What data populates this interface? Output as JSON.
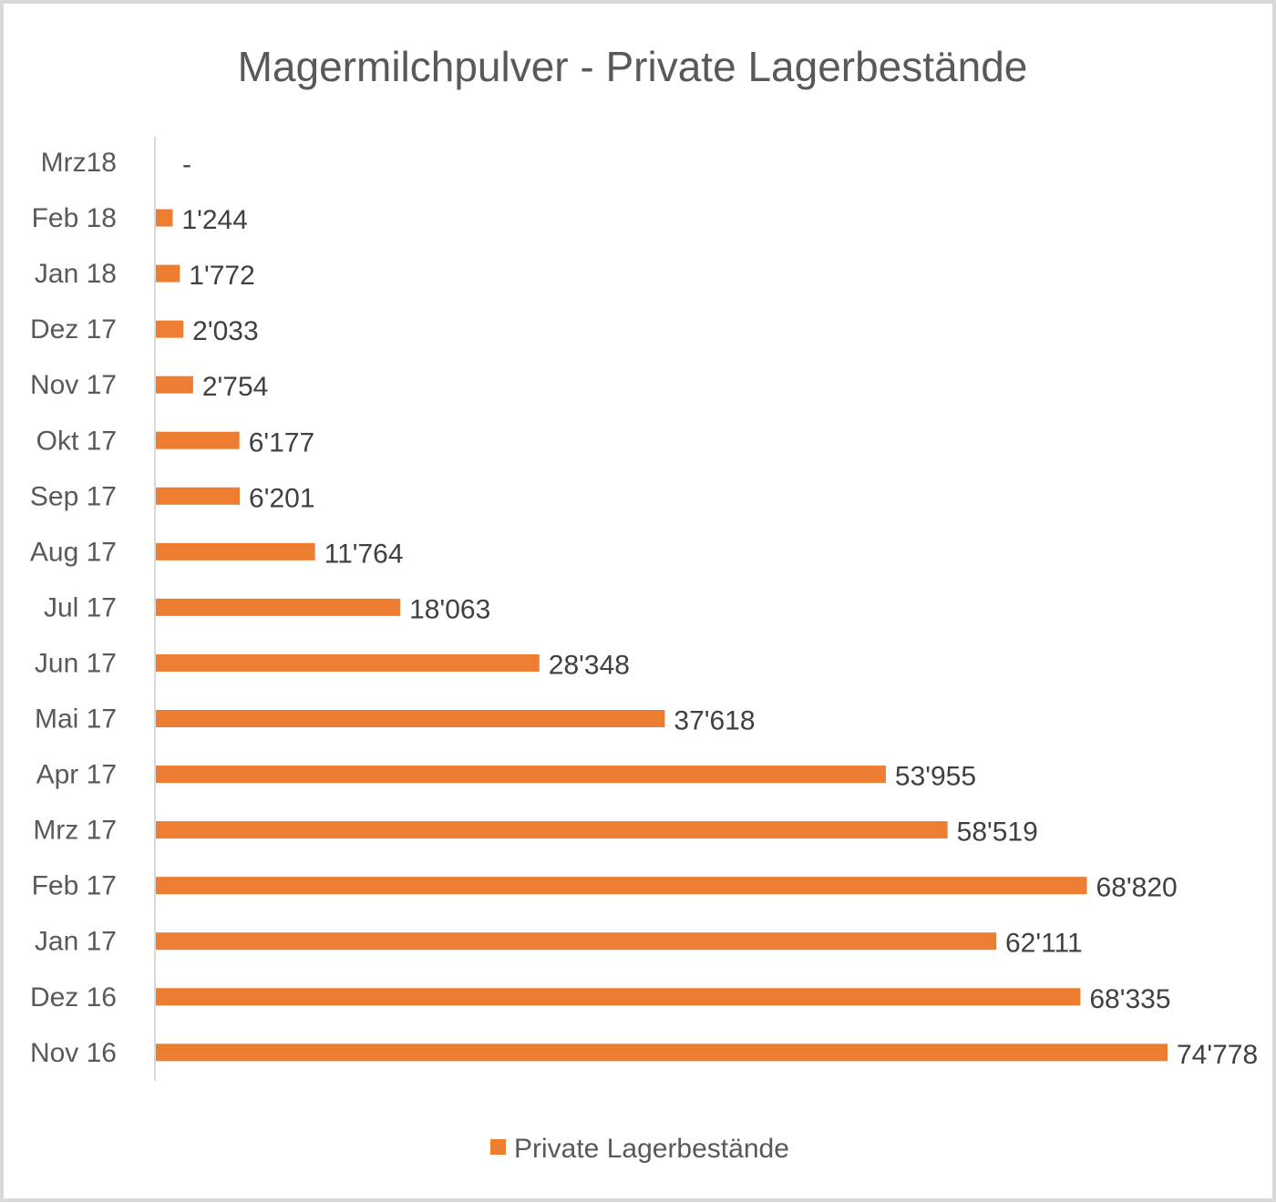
{
  "chart_data": {
    "type": "bar",
    "orientation": "horizontal",
    "title": "Magermilchpulver - Private Lagerbestände",
    "categories": [
      "Mrz18",
      "Feb 18",
      "Jan 18",
      "Dez 17",
      "Nov 17",
      "Okt 17",
      "Sep 17",
      "Aug 17",
      "Jul 17",
      "Jun 17",
      "Mai 17",
      "Apr 17",
      "Mrz 17",
      "Feb 17",
      "Jan 17",
      "Dez 16",
      "Nov 16"
    ],
    "series": [
      {
        "name": "Private Lagerbestände",
        "color": "#ED7D31",
        "values": [
          0,
          1244,
          1772,
          2033,
          2754,
          6177,
          6201,
          11764,
          18063,
          28348,
          37618,
          53955,
          58519,
          68820,
          62111,
          68335,
          74778
        ],
        "data_labels": [
          "-",
          "1'244",
          "1'772",
          "2'033",
          "2'754",
          "6'177",
          "6'201",
          "11'764",
          "18'063",
          "28'348",
          "37'618",
          "53'955",
          "58'519",
          "68'820",
          "62'111",
          "68'335",
          "74'778"
        ]
      }
    ],
    "xlim": [
      0,
      75000
    ],
    "grid": false,
    "value_axis_visible": false,
    "legend": "bottom"
  }
}
